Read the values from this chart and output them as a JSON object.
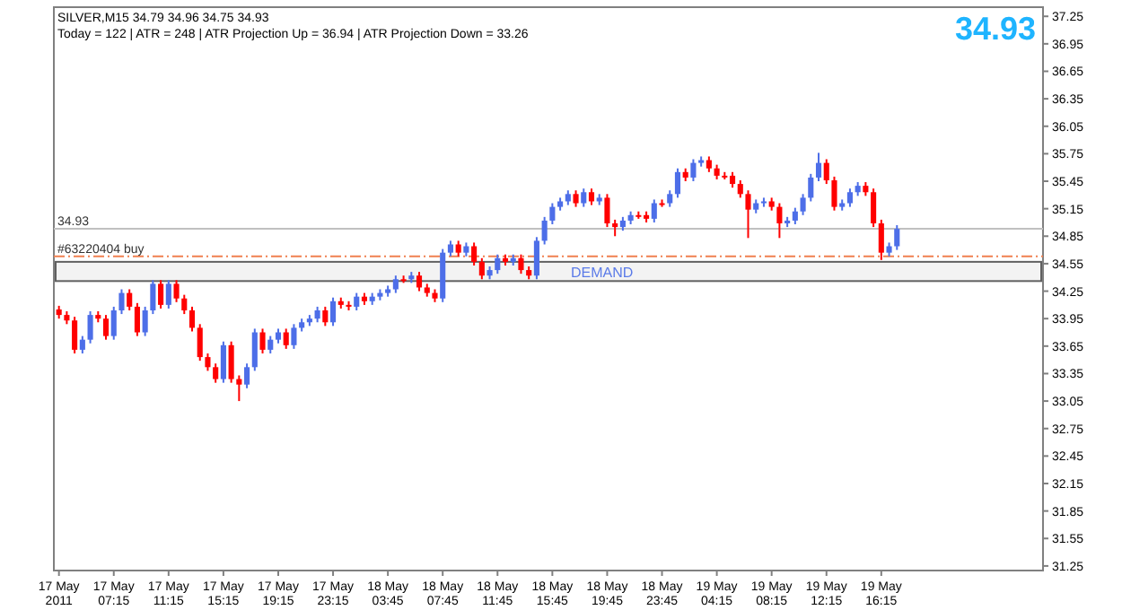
{
  "chart_data": {
    "type": "candlestick",
    "title": "SILVER,M15  34.79 34.96 34.75 34.93",
    "subtitle": "Today = 122  |  ATR = 248  |  ATR Projection Up = 36.94  |  ATR Projection Down = 33.26",
    "annotations": [
      "34.93"
    ],
    "categories": [
      "17 May 2011",
      null,
      null,
      null,
      null,
      null,
      null,
      "17 May 07:15",
      null,
      null,
      null,
      null,
      null,
      null,
      "17 May 11:15",
      null,
      null,
      null,
      null,
      null,
      null,
      "17 May 15:15",
      null,
      null,
      null,
      null,
      null,
      null,
      "17 May 19:15",
      null,
      null,
      null,
      null,
      null,
      null,
      "17 May 23:15",
      null,
      null,
      null,
      null,
      null,
      null,
      "18 May 03:45",
      null,
      null,
      null,
      null,
      null,
      null,
      "18 May 07:45",
      null,
      null,
      null,
      null,
      null,
      null,
      "18 May 11:45",
      null,
      null,
      null,
      null,
      null,
      null,
      "18 May 15:45",
      null,
      null,
      null,
      null,
      null,
      null,
      "18 May 19:45",
      null,
      null,
      null,
      null,
      null,
      null,
      "18 May 23:45",
      null,
      null,
      null,
      null,
      null,
      null,
      "19 May 04:15",
      null,
      null,
      null,
      null,
      null,
      null,
      "19 May 08:15",
      null,
      null,
      null,
      null,
      null,
      null,
      "19 May 12:15",
      null,
      null,
      null,
      null,
      null,
      null,
      "19 May 16:15",
      null,
      null,
      null,
      null,
      null,
      null,
      null,
      null,
      null,
      null,
      null,
      null,
      null,
      null,
      null,
      null,
      null,
      null,
      null,
      null
    ],
    "ohlc": [
      [
        34.05,
        34.09,
        33.95,
        33.99
      ],
      [
        33.99,
        34.03,
        33.89,
        33.93
      ],
      [
        33.93,
        33.97,
        33.57,
        33.61
      ],
      [
        33.61,
        33.76,
        33.57,
        33.72
      ],
      [
        33.72,
        34.03,
        33.68,
        33.99
      ],
      [
        33.99,
        34.03,
        33.91,
        33.95
      ],
      [
        33.95,
        33.99,
        33.72,
        33.76
      ],
      [
        33.76,
        34.08,
        33.72,
        34.04
      ],
      [
        34.04,
        34.27,
        34.0,
        34.23
      ],
      [
        34.23,
        34.27,
        34.04,
        34.08
      ],
      [
        34.08,
        34.12,
        33.76,
        33.8
      ],
      [
        33.8,
        34.08,
        33.76,
        34.04
      ],
      [
        34.04,
        34.37,
        34.0,
        34.33
      ],
      [
        34.33,
        34.37,
        34.06,
        34.1
      ],
      [
        34.1,
        34.37,
        34.06,
        34.33
      ],
      [
        34.33,
        34.37,
        34.13,
        34.17
      ],
      [
        34.17,
        34.21,
        34.0,
        34.04
      ],
      [
        34.04,
        34.08,
        33.81,
        33.85
      ],
      [
        33.85,
        33.89,
        33.49,
        33.53
      ],
      [
        33.53,
        33.57,
        33.38,
        33.42
      ],
      [
        33.42,
        33.46,
        33.25,
        33.29
      ],
      [
        33.29,
        33.7,
        33.25,
        33.66
      ],
      [
        33.66,
        33.7,
        33.25,
        33.29
      ],
      [
        33.29,
        33.33,
        33.05,
        33.23
      ],
      [
        33.23,
        33.46,
        33.19,
        33.42
      ],
      [
        33.42,
        33.84,
        33.38,
        33.8
      ],
      [
        33.8,
        33.84,
        33.57,
        33.61
      ],
      [
        33.61,
        33.76,
        33.57,
        33.72
      ],
      [
        33.72,
        33.84,
        33.68,
        33.8
      ],
      [
        33.8,
        33.84,
        33.62,
        33.66
      ],
      [
        33.66,
        33.89,
        33.62,
        33.85
      ],
      [
        33.85,
        33.95,
        33.81,
        33.91
      ],
      [
        33.91,
        33.99,
        33.87,
        33.95
      ],
      [
        33.95,
        34.08,
        33.91,
        34.04
      ],
      [
        34.04,
        34.08,
        33.87,
        33.91
      ],
      [
        33.91,
        34.18,
        33.87,
        34.14
      ],
      [
        34.14,
        34.18,
        34.06,
        34.1
      ],
      [
        34.1,
        34.14,
        34.04,
        34.08
      ],
      [
        34.08,
        34.23,
        34.04,
        34.19
      ],
      [
        34.19,
        34.23,
        34.1,
        34.14
      ],
      [
        34.14,
        34.23,
        34.1,
        34.19
      ],
      [
        34.19,
        34.27,
        34.15,
        34.23
      ],
      [
        34.23,
        34.31,
        34.19,
        34.27
      ],
      [
        34.27,
        34.42,
        34.23,
        34.38
      ],
      [
        34.38,
        34.42,
        34.34,
        34.38
      ],
      [
        34.38,
        34.46,
        34.34,
        34.42
      ],
      [
        34.42,
        34.46,
        34.25,
        34.29
      ],
      [
        34.29,
        34.33,
        34.19,
        34.23
      ],
      [
        34.23,
        34.27,
        34.13,
        34.17
      ],
      [
        34.17,
        34.71,
        34.13,
        34.67
      ],
      [
        34.67,
        34.8,
        34.63,
        34.76
      ],
      [
        34.76,
        34.8,
        34.63,
        34.67
      ],
      [
        34.67,
        34.78,
        34.63,
        34.74
      ],
      [
        34.74,
        34.78,
        34.53,
        34.57
      ],
      [
        34.57,
        34.61,
        34.38,
        34.42
      ],
      [
        34.42,
        34.52,
        34.38,
        34.48
      ],
      [
        34.48,
        34.65,
        34.44,
        34.61
      ],
      [
        34.61,
        34.65,
        34.53,
        34.57
      ],
      [
        34.57,
        34.65,
        34.53,
        34.61
      ],
      [
        34.61,
        34.65,
        34.44,
        34.48
      ],
      [
        34.48,
        34.52,
        34.38,
        34.42
      ],
      [
        34.42,
        34.84,
        34.38,
        34.8
      ],
      [
        34.8,
        35.06,
        34.76,
        35.02
      ],
      [
        35.02,
        35.21,
        34.98,
        35.17
      ],
      [
        35.17,
        35.27,
        35.13,
        35.23
      ],
      [
        35.23,
        35.35,
        35.19,
        35.31
      ],
      [
        35.31,
        35.35,
        35.17,
        35.21
      ],
      [
        35.21,
        35.37,
        35.17,
        35.33
      ],
      [
        35.33,
        35.37,
        35.19,
        35.23
      ],
      [
        35.23,
        35.31,
        35.19,
        35.27
      ],
      [
        35.27,
        35.31,
        34.95,
        34.99
      ],
      [
        34.99,
        35.03,
        34.85,
        34.95
      ],
      [
        34.95,
        35.06,
        34.91,
        35.02
      ],
      [
        35.02,
        35.12,
        34.98,
        35.08
      ],
      [
        35.08,
        35.12,
        35.04,
        35.08
      ],
      [
        35.08,
        35.12,
        35.0,
        35.04
      ],
      [
        35.04,
        35.25,
        35.0,
        35.21
      ],
      [
        35.21,
        35.25,
        35.17,
        35.21
      ],
      [
        35.21,
        35.35,
        35.17,
        35.31
      ],
      [
        35.31,
        35.59,
        35.27,
        35.55
      ],
      [
        35.55,
        35.59,
        35.45,
        35.49
      ],
      [
        35.49,
        35.69,
        35.45,
        35.65
      ],
      [
        35.65,
        35.72,
        35.61,
        35.68
      ],
      [
        35.68,
        35.72,
        35.55,
        35.59
      ],
      [
        35.59,
        35.63,
        35.47,
        35.51
      ],
      [
        35.51,
        35.55,
        35.47,
        35.51
      ],
      [
        35.51,
        35.55,
        35.38,
        35.42
      ],
      [
        35.42,
        35.46,
        35.27,
        35.31
      ],
      [
        35.31,
        35.35,
        34.83,
        35.14
      ],
      [
        35.14,
        35.25,
        35.1,
        35.21
      ],
      [
        35.21,
        35.27,
        35.17,
        35.23
      ],
      [
        35.23,
        35.27,
        35.13,
        35.17
      ],
      [
        35.17,
        35.21,
        34.83,
        34.99
      ],
      [
        34.99,
        35.06,
        34.95,
        35.02
      ],
      [
        35.02,
        35.16,
        34.98,
        35.12
      ],
      [
        35.12,
        35.31,
        35.08,
        35.27
      ],
      [
        35.27,
        35.53,
        35.23,
        35.49
      ],
      [
        35.49,
        35.76,
        35.45,
        35.65
      ],
      [
        35.65,
        35.69,
        35.42,
        35.46
      ],
      [
        35.46,
        35.5,
        35.13,
        35.17
      ],
      [
        35.17,
        35.25,
        35.13,
        35.21
      ],
      [
        35.21,
        35.37,
        35.17,
        35.33
      ],
      [
        35.33,
        35.44,
        35.29,
        35.4
      ],
      [
        35.4,
        35.44,
        35.29,
        35.33
      ],
      [
        35.33,
        35.37,
        34.95,
        34.99
      ],
      [
        34.99,
        35.03,
        34.59,
        34.67
      ],
      [
        34.67,
        34.78,
        34.63,
        34.74
      ],
      [
        34.74,
        34.97,
        34.7,
        34.93
      ],
      null,
      null,
      null,
      null,
      null,
      null,
      null,
      null,
      null,
      null,
      null,
      null,
      null,
      null,
      null,
      null,
      null,
      null
    ],
    "colors": [
      "#ff0000",
      "#ff0000",
      "#ff0000",
      "#4d6ee8",
      "#4d6ee8",
      "#ff0000",
      "#ff0000",
      "#4d6ee8",
      "#4d6ee8",
      "#ff0000",
      "#ff0000",
      "#4d6ee8",
      "#4d6ee8",
      "#ff0000",
      "#4d6ee8",
      "#ff0000",
      "#ff0000",
      "#ff0000",
      "#ff0000",
      "#ff0000",
      "#ff0000",
      "#4d6ee8",
      "#ff0000",
      "#ff0000",
      "#4d6ee8",
      "#4d6ee8",
      "#ff0000",
      "#4d6ee8",
      "#4d6ee8",
      "#ff0000",
      "#4d6ee8",
      "#4d6ee8",
      "#4d6ee8",
      "#4d6ee8",
      "#ff0000",
      "#4d6ee8",
      "#ff0000",
      "#ff0000",
      "#4d6ee8",
      "#ff0000",
      "#4d6ee8",
      "#4d6ee8",
      "#4d6ee8",
      "#4d6ee8",
      "#ff0000",
      "#4d6ee8",
      "#ff0000",
      "#ff0000",
      "#ff0000",
      "#4d6ee8",
      "#4d6ee8",
      "#ff0000",
      "#4d6ee8",
      "#ff0000",
      "#ff0000",
      "#4d6ee8",
      "#4d6ee8",
      "#ff0000",
      "#4d6ee8",
      "#ff0000",
      "#ff0000",
      "#4d6ee8",
      "#4d6ee8",
      "#4d6ee8",
      "#4d6ee8",
      "#4d6ee8",
      "#ff0000",
      "#4d6ee8",
      "#ff0000",
      "#4d6ee8",
      "#ff0000",
      "#ff0000",
      "#4d6ee8",
      "#4d6ee8",
      "#ff0000",
      "#ff0000",
      "#4d6ee8",
      "#ff0000",
      "#4d6ee8",
      "#4d6ee8",
      "#ff0000",
      "#4d6ee8",
      "#4d6ee8",
      "#ff0000",
      "#ff0000",
      "#ff0000",
      "#ff0000",
      "#ff0000",
      "#ff0000",
      "#4d6ee8",
      "#4d6ee8",
      "#ff0000",
      "#ff0000",
      "#4d6ee8",
      "#4d6ee8",
      "#4d6ee8",
      "#4d6ee8",
      "#4d6ee8",
      "#ff0000",
      "#ff0000",
      "#4d6ee8",
      "#4d6ee8",
      "#4d6ee8",
      "#ff0000",
      "#ff0000",
      "#ff0000",
      "#4d6ee8",
      "#4d6ee8",
      null,
      null,
      null,
      null,
      null,
      null,
      null,
      null,
      null,
      null,
      null,
      null,
      null,
      null,
      null,
      null,
      null,
      null
    ],
    "ylim": [
      31.2,
      37.35
    ],
    "yticks": [
      31.25,
      31.55,
      31.85,
      32.15,
      32.45,
      32.75,
      33.05,
      33.35,
      33.65,
      33.95,
      34.25,
      34.55,
      34.85,
      35.15,
      35.45,
      35.75,
      36.05,
      36.35,
      36.65,
      36.95,
      37.25
    ],
    "ref_lines": [
      {
        "axis": "y",
        "value": 34.93,
        "label": "34.93",
        "color": "#c0c0c0",
        "line_style": "solid"
      },
      {
        "axis": "y",
        "value": 34.63,
        "label": "#63220404 buy",
        "color": "#f08050",
        "line_style": "dashed"
      }
    ],
    "bands": [
      {
        "axis": "y",
        "from": 34.36,
        "to": 34.57,
        "label": "DEMAND",
        "color": "#606060"
      }
    ]
  }
}
